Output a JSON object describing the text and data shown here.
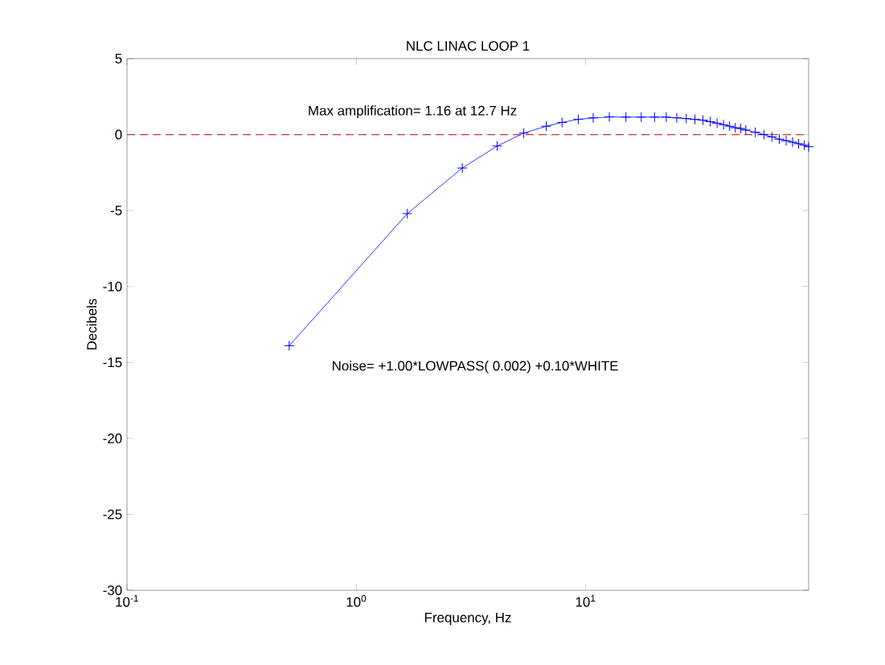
{
  "chart_data": {
    "type": "line",
    "title": "NLC LINAC LOOP 1",
    "xlabel": "Frequency, Hz",
    "ylabel": "Decibels",
    "annotations": [
      "Max amplification= 1.16 at 12.7 Hz",
      "Noise= +1.00*LOWPASS(  0.002) +0.10*WHITE"
    ],
    "x": [
      0.51,
      1.67,
      2.9,
      4.12,
      5.38,
      6.74,
      7.9,
      9.3,
      10.8,
      12.7,
      15,
      17.5,
      20,
      22.5,
      25,
      27.5,
      30,
      32.5,
      35,
      37.5,
      40,
      42.5,
      45,
      47.5,
      50,
      55,
      60,
      65,
      70,
      75,
      80,
      85,
      90,
      94
    ],
    "series": [
      {
        "color": "#0000ff",
        "values": [
          -13.9,
          -5.2,
          -2.2,
          -0.75,
          0.1,
          0.55,
          0.8,
          1.0,
          1.1,
          1.16,
          1.15,
          1.15,
          1.15,
          1.15,
          1.1,
          1.05,
          1.0,
          0.95,
          0.85,
          0.75,
          0.65,
          0.55,
          0.45,
          0.4,
          0.3,
          0.15,
          0.0,
          -0.15,
          -0.3,
          -0.4,
          -0.5,
          -0.6,
          -0.7,
          -0.8
        ]
      }
    ],
    "ref_lines": [
      {
        "axis": "y",
        "value": 0,
        "color": "#d03030",
        "line_style": "dashed"
      }
    ],
    "log": "x",
    "marker": "cross",
    "line_style": "solid",
    "xlim": [
      0.1,
      94
    ],
    "xticks": [
      {
        "value": 0.1,
        "label": "10$^{-1}$"
      },
      {
        "value": 1,
        "label": "10$^{0}$"
      },
      {
        "value": 10,
        "label": "10$^{1}$"
      }
    ],
    "ylim": [
      -30,
      5
    ],
    "yticks": [
      -30,
      -25,
      -20,
      -15,
      -10,
      -5,
      0,
      5
    ]
  }
}
